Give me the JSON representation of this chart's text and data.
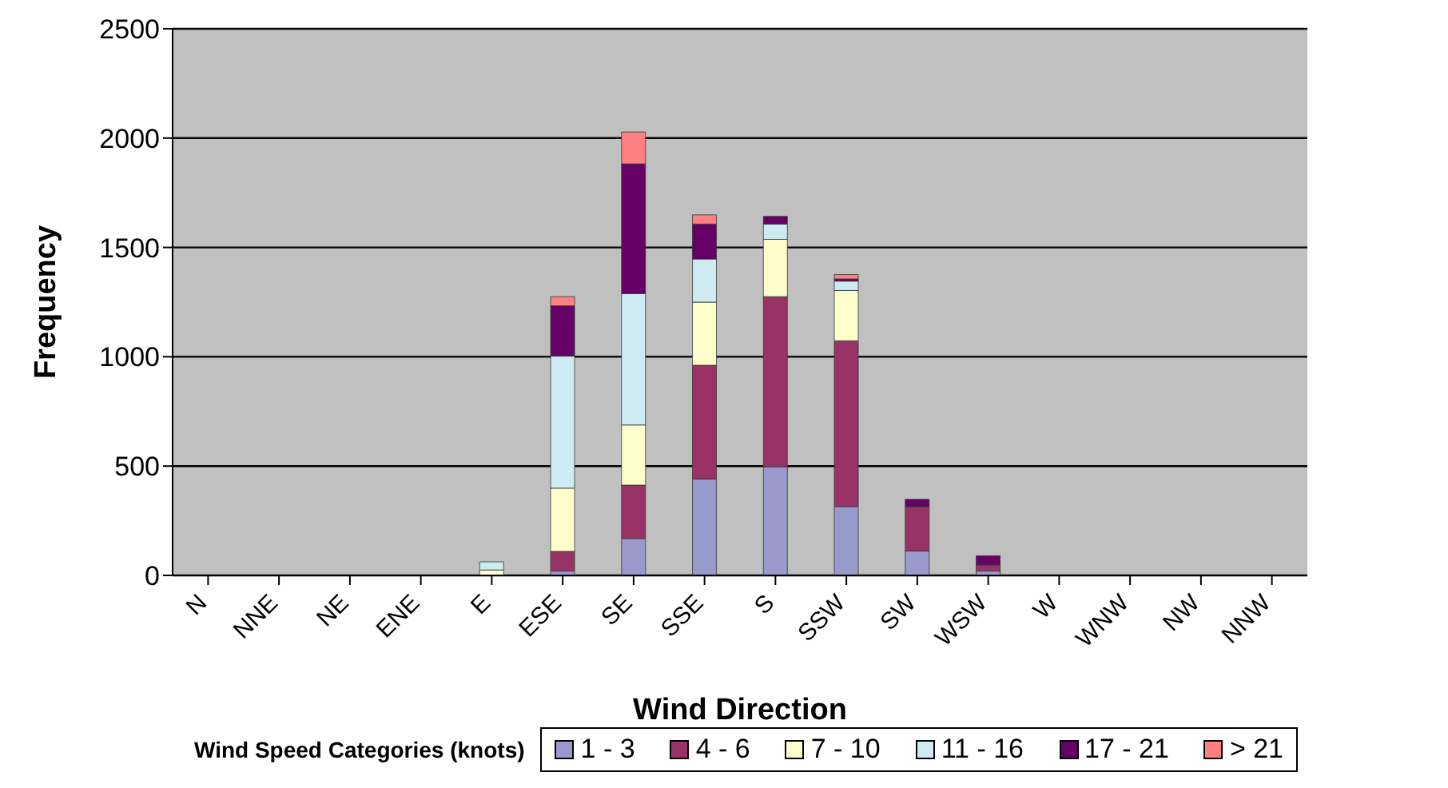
{
  "chart_data": {
    "type": "bar",
    "stacked": true,
    "xlabel": "Wind Direction",
    "ylabel": "Frequency",
    "legend_title": "Wind Speed Categories (knots)",
    "legend": "bottom",
    "grid": "y",
    "categories": [
      "N",
      "NNE",
      "NE",
      "ENE",
      "E",
      "ESE",
      "SE",
      "SSE",
      "S",
      "SSW",
      "SW",
      "WSW",
      "W",
      "WNW",
      "NW",
      "NNW"
    ],
    "ylim": [
      0,
      2500
    ],
    "yticks": [
      0,
      500,
      1000,
      1500,
      2000,
      2500
    ],
    "series": [
      {
        "name": "1 - 3",
        "color": "#9999cc",
        "values": [
          0,
          0,
          0,
          0,
          0,
          20,
          169,
          441,
          497,
          315,
          112,
          20,
          0,
          0,
          0,
          0
        ]
      },
      {
        "name": "4 - 6",
        "color": "#993366",
        "values": [
          0,
          0,
          0,
          0,
          0,
          90,
          244,
          520,
          778,
          758,
          203,
          28,
          0,
          0,
          0,
          0
        ]
      },
      {
        "name": "7 - 10",
        "color": "#ffffcc",
        "values": [
          0,
          0,
          0,
          0,
          25,
          289,
          275,
          289,
          262,
          230,
          0,
          0,
          0,
          0,
          0,
          0
        ]
      },
      {
        "name": "11 - 16",
        "color": "#ccecf2",
        "values": [
          0,
          0,
          0,
          0,
          37,
          604,
          601,
          197,
          70,
          43,
          0,
          0,
          0,
          0,
          0,
          0
        ]
      },
      {
        "name": "17 - 21",
        "color": "#660066",
        "values": [
          0,
          0,
          0,
          0,
          0,
          230,
          593,
          160,
          35,
          10,
          33,
          42,
          0,
          0,
          0,
          0
        ]
      },
      {
        "name": "> 21",
        "color": "#ff8080",
        "values": [
          0,
          0,
          0,
          0,
          0,
          42,
          146,
          42,
          0,
          20,
          0,
          0,
          0,
          0,
          0,
          0
        ]
      }
    ]
  }
}
